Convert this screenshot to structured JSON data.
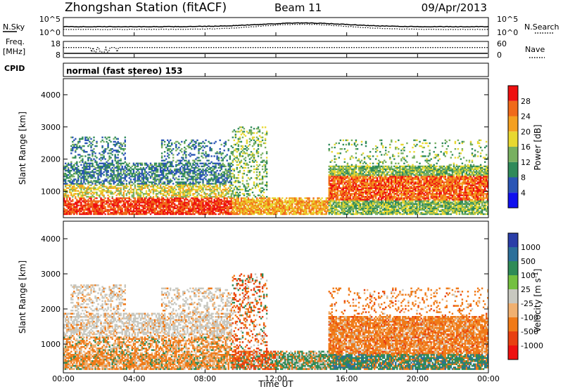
{
  "header": {
    "title": "Zhongshan Station (fitACF)",
    "beam": "Beam 11",
    "date": "09/Apr/2013"
  },
  "strips": {
    "nsky": {
      "label": "N.Sky",
      "left_ticks": [
        "10^5",
        "10^0"
      ],
      "right_ticks": [
        "10^5",
        "10^0"
      ],
      "right_label": "N.Search"
    },
    "freq": {
      "label_line1": "Freq.",
      "label_line2": "[MHz]",
      "left_ticks": [
        "18",
        "8"
      ],
      "right_ticks": [
        "60",
        "0"
      ],
      "right_label": "Nave"
    },
    "cpid": {
      "label": "CPID",
      "text": "normal (fast stereo) 153"
    }
  },
  "chart_data": [
    {
      "type": "heatmap",
      "quantity": "Power",
      "ylabel": "Slant Range [km]",
      "yticks": [
        1000,
        2000,
        3000,
        4000
      ],
      "ylim": [
        180,
        4500
      ],
      "xlim": [
        0,
        24
      ],
      "colorbar": {
        "label": "Power [dB]",
        "ticks": [
          "4",
          "8",
          "12",
          "16",
          "20",
          "24",
          "28"
        ],
        "colors": [
          "#1010ee",
          "#2a55b5",
          "#2f8a5a",
          "#78b060",
          "#e8d830",
          "#f4a020",
          "#f06a1a",
          "#ee1010"
        ],
        "range": [
          0,
          32
        ]
      }
    },
    {
      "type": "heatmap",
      "quantity": "Velocity",
      "ylabel": "Slant Range [km]",
      "yticks": [
        1000,
        2000,
        3000,
        4000
      ],
      "ylim": [
        180,
        4500
      ],
      "xlim": [
        0,
        24
      ],
      "xlabel": "Time UT",
      "xticks": [
        "00:00",
        "04:00",
        "08:00",
        "12:00",
        "16:00",
        "20:00",
        "00:00"
      ],
      "colorbar": {
        "label": "Velocity [m s^-1]",
        "ticks": [
          "1000",
          "500",
          "100",
          "25",
          "-25",
          "-100",
          "-500",
          "-1000"
        ],
        "colors": [
          "#2a3ea8",
          "#2b6f9a",
          "#2e8b57",
          "#74c040",
          "#c8c8c0",
          "#f0b070",
          "#f07a18",
          "#e84010",
          "#ee1010"
        ]
      }
    }
  ]
}
